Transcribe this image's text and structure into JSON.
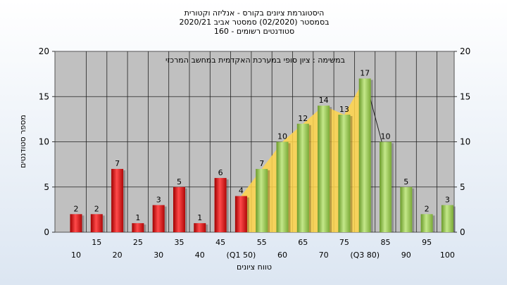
{
  "chart_data": {
    "type": "bar",
    "title_lines": [
      "היסטוגרמת ציונים בקורס - אנליזה וקטורית",
      "בסמסטר (02/2020) סמסטר אביב 2020/21",
      "סטודנטים רשומים - 160"
    ],
    "annotation": "במשימה : ציון סופי במערכת האקדמית במחשב המרכזי",
    "xlabel": "טווח ציונים",
    "ylabel": "מספר סטודנטים",
    "ylim": [
      0,
      20
    ],
    "yticks": [
      0,
      5,
      10,
      15,
      20
    ],
    "grid": true,
    "categories": [
      "10",
      "15",
      "20",
      "25",
      "30",
      "35",
      "40",
      "45",
      "(Q1 50)",
      "55",
      "60",
      "65",
      "70",
      "75",
      "(Q3 80)",
      "85",
      "90",
      "95",
      "100"
    ],
    "values": [
      2,
      2,
      7,
      1,
      3,
      5,
      1,
      6,
      4,
      7,
      10,
      12,
      14,
      13,
      17,
      10,
      5,
      2,
      3
    ],
    "series_colors": {
      "fail": "#e02020",
      "pass": "#9acd50",
      "band": "#ffd54a"
    },
    "pass_threshold_category": "55",
    "band_range": [
      "(Q1 50)",
      "(Q3 80)"
    ]
  }
}
